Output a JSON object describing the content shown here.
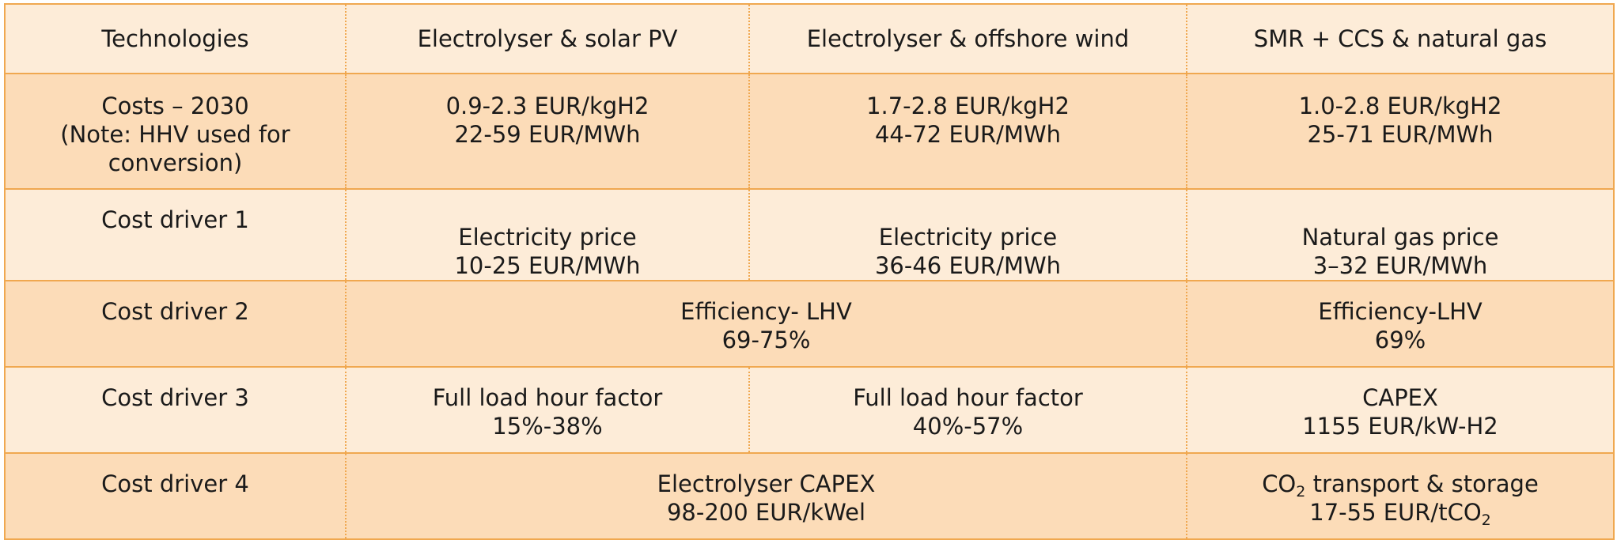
{
  "header": {
    "technologies": "Technologies",
    "col_solar": "Electrolyser & solar PV",
    "col_wind": "Electrolyser & offshore wind",
    "col_smr": "SMR + CCS & natural gas"
  },
  "costs_2030": {
    "label_line1": "Costs – 2030",
    "label_line2": "(Note: HHV used for conversion)",
    "solar": [
      "0.9-2.3 EUR/kgH2",
      "22-59 EUR/MWh"
    ],
    "wind": [
      "1.7-2.8 EUR/kgH2",
      "44-72 EUR/MWh"
    ],
    "smr": [
      "1.0-2.8 EUR/kgH2",
      "25-71 EUR/MWh"
    ]
  },
  "cost_driver_1": {
    "label": "Cost driver 1",
    "solar": [
      "Electricity price",
      "10-25 EUR/MWh"
    ],
    "wind": [
      "Electricity price",
      "36-46 EUR/MWh"
    ],
    "smr": [
      "Natural gas price",
      "3–32 EUR/MWh"
    ]
  },
  "cost_driver_2": {
    "label": "Cost driver 2",
    "electrolyser": [
      "Efficiency- LHV",
      "69-75%"
    ],
    "smr": [
      "Efficiency-LHV",
      "69%"
    ]
  },
  "cost_driver_3": {
    "label": "Cost driver 3",
    "solar": [
      "Full load hour factor",
      "15%-38%"
    ],
    "wind": [
      "Full load hour factor",
      "40%-57%"
    ],
    "smr": [
      "CAPEX",
      "1155 EUR/kW-H2"
    ]
  },
  "cost_driver_4": {
    "label": "Cost driver 4",
    "electrolyser": [
      "Electrolyser CAPEX",
      "98-200 EUR/kWel"
    ],
    "smr_line1_prefix": "CO",
    "smr_line1_sub": "2",
    "smr_line1_suffix": " transport & storage",
    "smr_line2_prefix": "17-55 EUR/tCO",
    "smr_line2_sub": "2"
  },
  "colors": {
    "border": "#f0a850",
    "row_light": "#fdecd8",
    "row_dark": "#fcdcb8"
  }
}
